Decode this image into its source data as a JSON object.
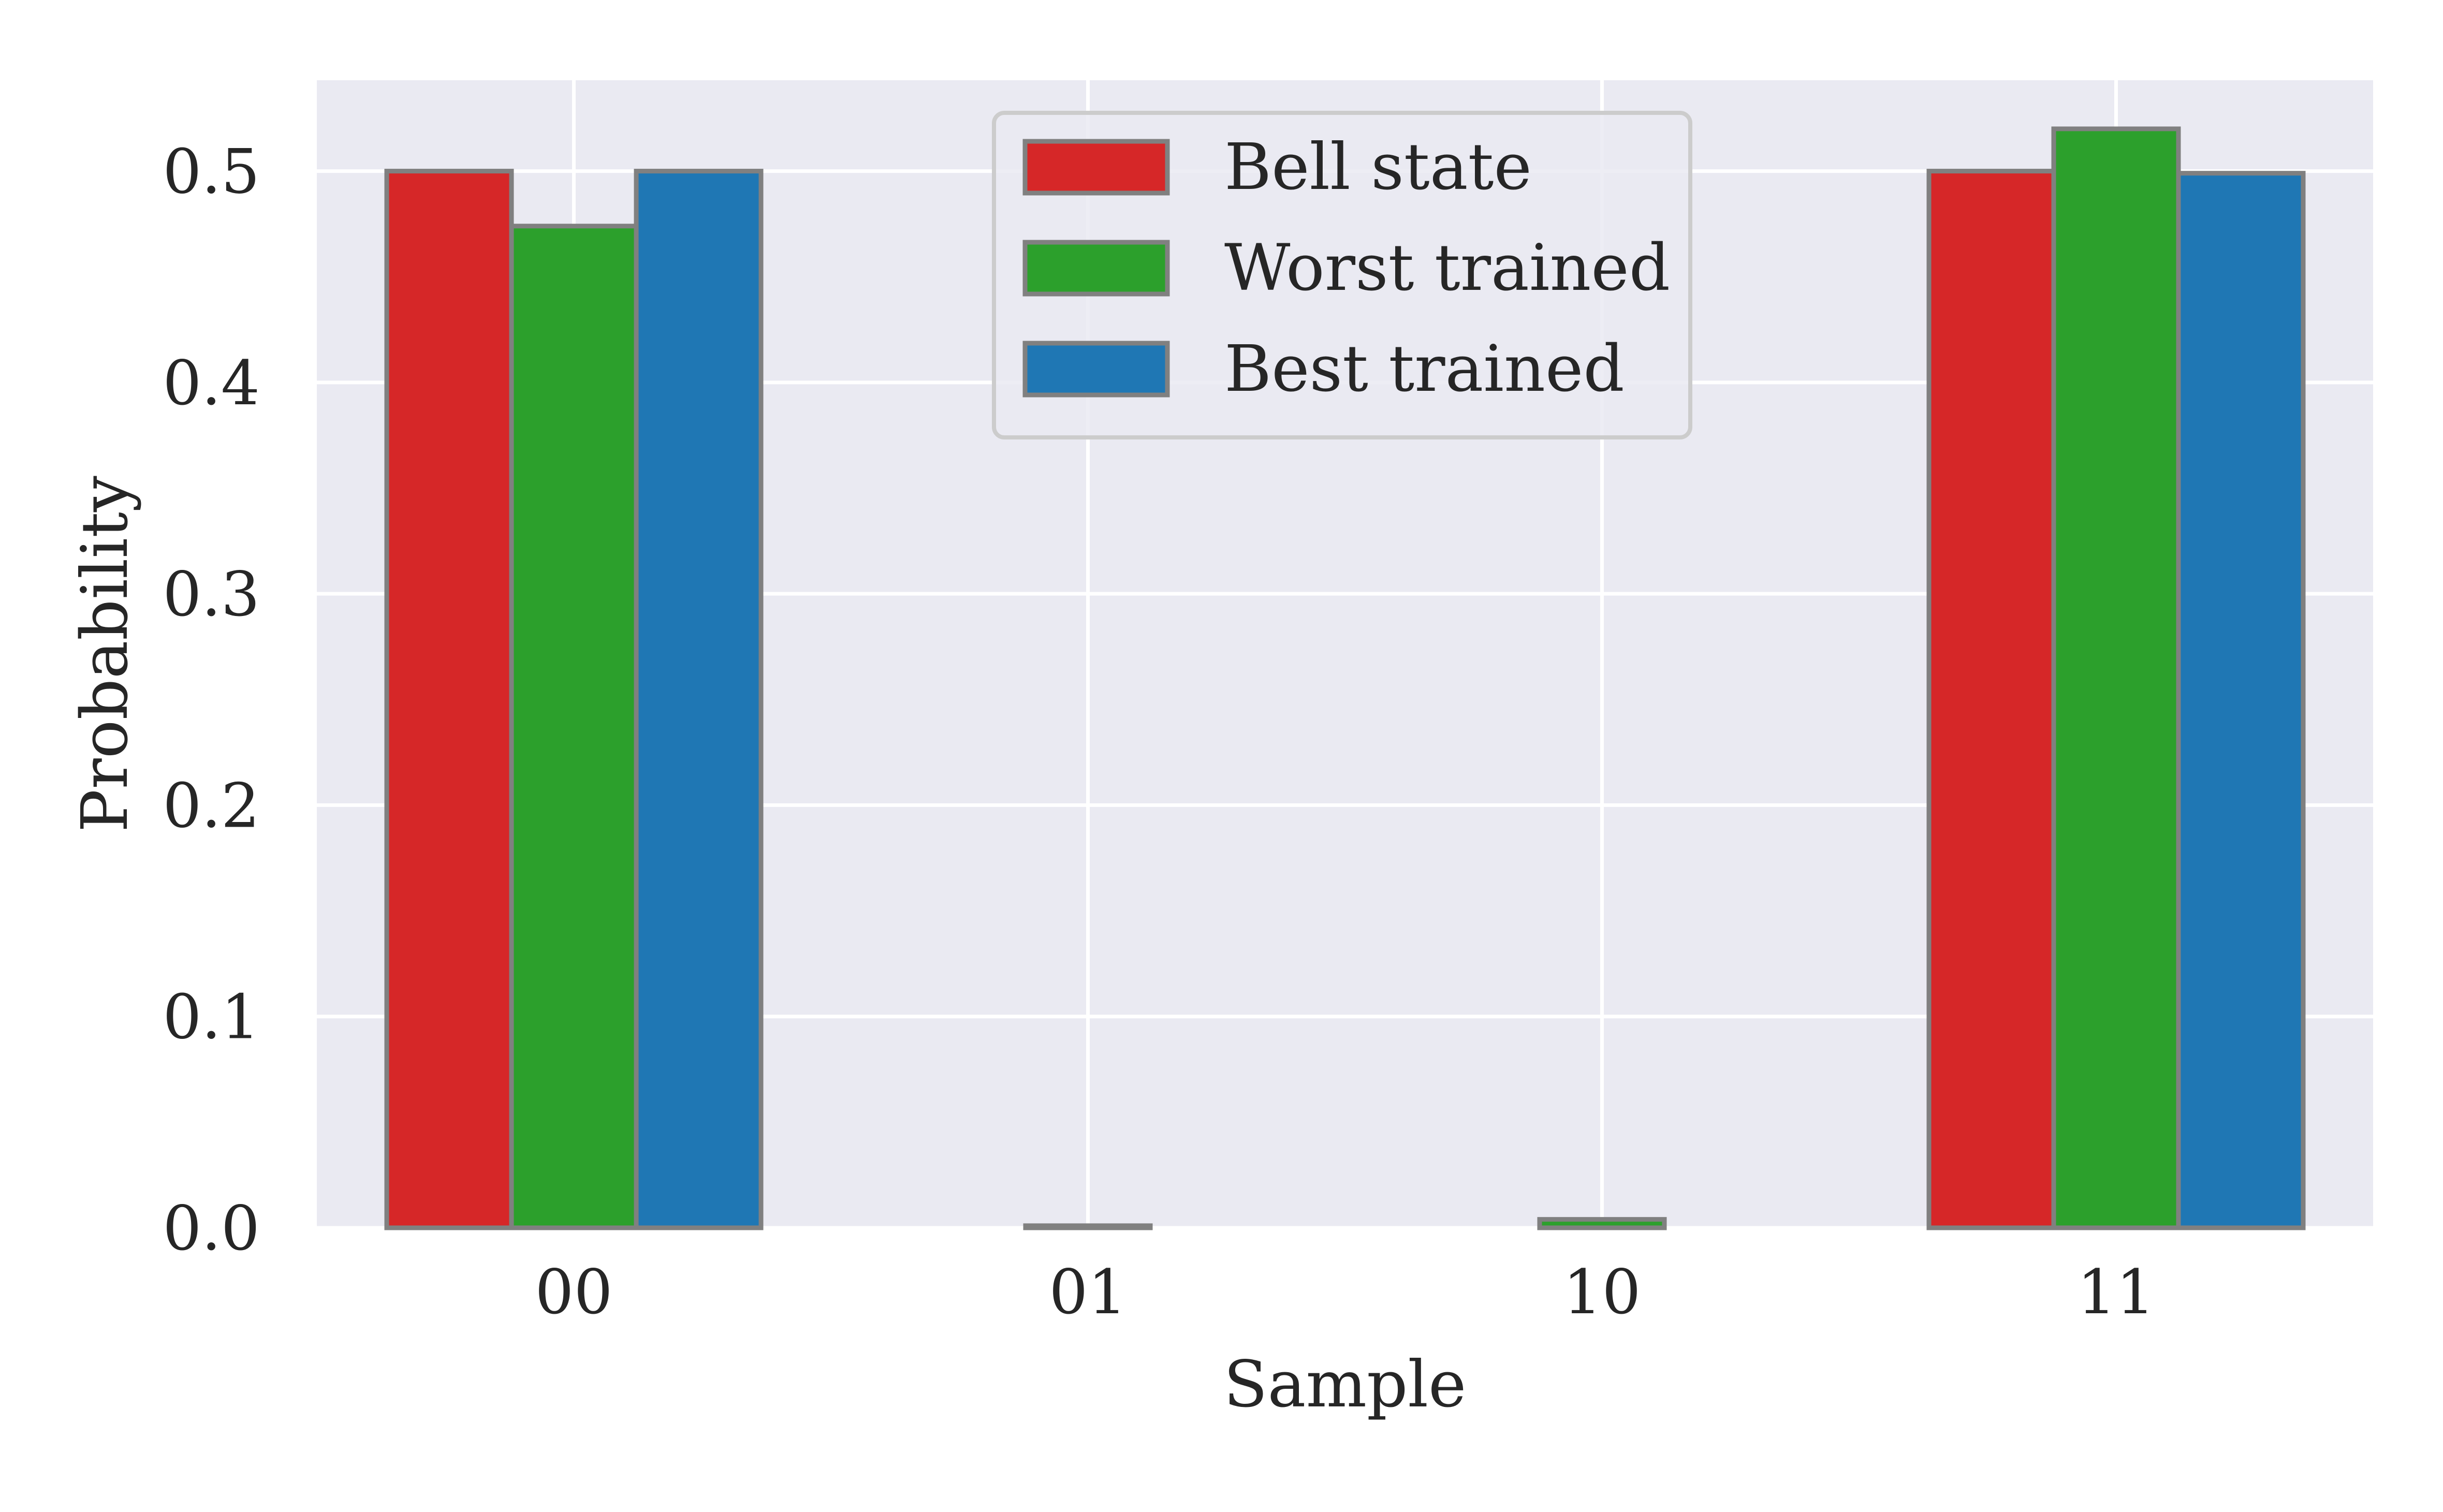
{
  "chart_data": {
    "type": "bar",
    "categories": [
      "00",
      "01",
      "10",
      "11"
    ],
    "series": [
      {
        "name": "Bell state",
        "values": [
          0.5,
          0.0,
          0.0,
          0.5
        ],
        "color": "#d62728"
      },
      {
        "name": "Worst trained",
        "values": [
          0.474,
          0.001,
          0.004,
          0.52
        ],
        "color": "#2ca02c"
      },
      {
        "name": "Best trained",
        "values": [
          0.5,
          0.0,
          0.0,
          0.499
        ],
        "color": "#1f77b4"
      }
    ],
    "xlabel": "Sample",
    "ylabel": "Probability",
    "ylim": [
      0,
      0.543
    ],
    "yticks": [
      "0.0",
      "0.1",
      "0.2",
      "0.3",
      "0.4",
      "0.5"
    ],
    "grid": true,
    "legend_position": "top-center",
    "colors": {
      "plot_background": "#eaeaf2",
      "grid": "#ffffff",
      "bar_edge": "#808080"
    }
  }
}
